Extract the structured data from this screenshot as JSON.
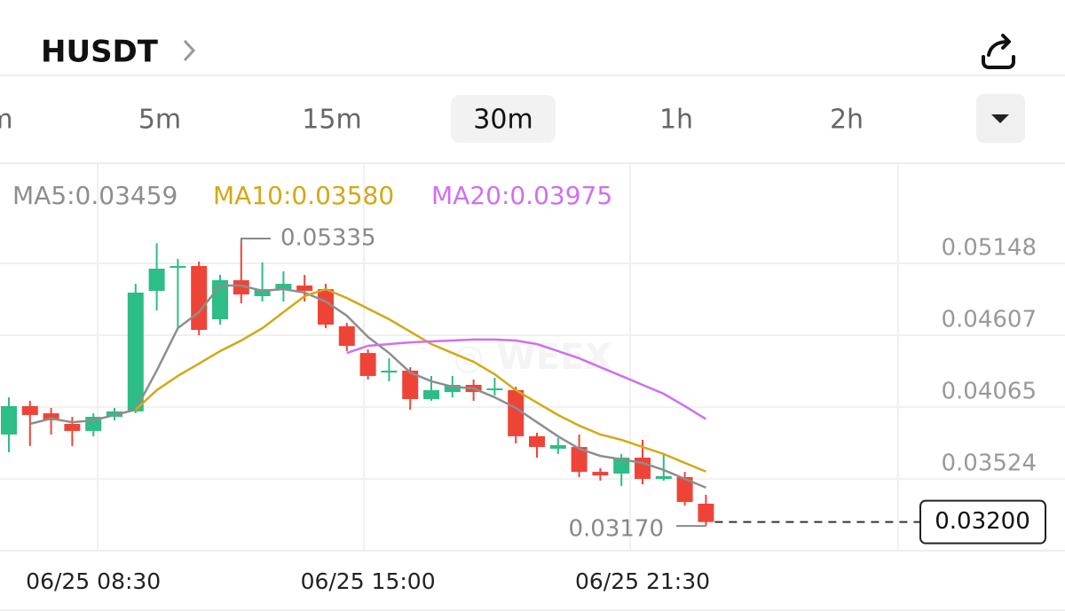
{
  "header": {
    "title": "HUSDT"
  },
  "tabs": {
    "items": [
      "m",
      "5m",
      "15m",
      "30m",
      "1h",
      "2h"
    ],
    "selected": 3
  },
  "chart_data": {
    "type": "candlestick",
    "categories": [
      null,
      null,
      null,
      null,
      "06/25 08:30",
      null,
      null,
      null,
      null,
      null,
      null,
      null,
      null,
      null,
      null,
      null,
      null,
      "06/25 15:00",
      null,
      null,
      null,
      null,
      null,
      null,
      null,
      null,
      null,
      null,
      null,
      null,
      "06/25 21:30",
      null,
      null,
      null
    ],
    "open": [
      0.03859,
      0.04073,
      0.04019,
      0.03939,
      0.03886,
      0.03992,
      0.04033,
      0.04941,
      0.05115,
      0.05128,
      0.04727,
      0.05021,
      0.04901,
      0.04954,
      0.04981,
      0.04954,
      0.04674,
      0.04473,
      0.04326,
      0.0434,
      0.04126,
      0.04179,
      0.04233,
      0.04193,
      0.04193,
      0.03846,
      0.03752,
      0.03765,
      0.03578,
      0.03565,
      0.03685,
      0.03525,
      0.03538,
      0.03338
    ],
    "high": [
      0.04139,
      0.04113,
      0.04059,
      0.03992,
      0.04019,
      0.04059,
      0.04994,
      0.053,
      0.05181,
      0.05161,
      0.05061,
      0.05335,
      0.05155,
      0.05088,
      0.05061,
      0.04994,
      0.047,
      0.045,
      0.04433,
      0.04366,
      0.043,
      0.043,
      0.04273,
      0.04286,
      0.04219,
      0.03872,
      0.03832,
      0.03859,
      0.03605,
      0.03712,
      0.03819,
      0.03712,
      0.03578,
      0.03405
    ],
    "low": [
      0.03725,
      0.03772,
      0.03859,
      0.03772,
      0.03846,
      0.03966,
      0.04019,
      0.04794,
      0.0466,
      0.04607,
      0.04687,
      0.04847,
      0.04861,
      0.04861,
      0.04861,
      0.0466,
      0.04487,
      0.04273,
      0.0426,
      0.04046,
      0.04113,
      0.04139,
      0.04113,
      0.04153,
      0.03792,
      0.03685,
      0.03712,
      0.03538,
      0.03511,
      0.03471,
      0.03485,
      0.03511,
      0.03324,
      0.0317
    ],
    "close": [
      0.04073,
      0.04006,
      0.03966,
      0.03886,
      0.03992,
      0.04033,
      0.04928,
      0.05108,
      0.05128,
      0.04647,
      0.05021,
      0.04914,
      0.04954,
      0.04994,
      0.04941,
      0.04687,
      0.04527,
      0.043,
      0.0434,
      0.04126,
      0.04193,
      0.04233,
      0.04179,
      0.04206,
      0.03846,
      0.03765,
      0.03779,
      0.03578,
      0.03551,
      0.03685,
      0.03525,
      0.03545,
      0.03351,
      0.032
    ],
    "up_color": "#2dbd86",
    "down_color": "#ee4438",
    "ylim": [
      0.02984,
      0.05896
    ],
    "yticks": [
      0.03524,
      0.04065,
      0.04607,
      0.05148
    ],
    "grid": true,
    "series": [
      {
        "name": "MA5:0.03459",
        "color": "#8e8e8e",
        "values": [
          null,
          0.03939,
          0.03979,
          0.03952,
          0.03966,
          0.04006,
          0.04046,
          0.0434,
          0.0466,
          0.04781,
          0.04981,
          0.04981,
          0.04941,
          0.04954,
          0.04928,
          0.04861,
          0.04754,
          0.04594,
          0.04473,
          0.04326,
          0.0426,
          0.04219,
          0.04206,
          0.04139,
          0.04059,
          0.03952,
          0.03845,
          0.03752,
          0.03698,
          0.03672,
          0.03645,
          0.03592,
          0.03525,
          0.03459
        ]
      },
      {
        "name": "MA10:0.03580",
        "color": "#d4a814",
        "values": [
          null,
          null,
          null,
          null,
          null,
          null,
          0.04046,
          0.04193,
          0.043,
          0.04393,
          0.04487,
          0.04567,
          0.0466,
          0.04781,
          0.04901,
          0.04954,
          0.04887,
          0.04807,
          0.04727,
          0.04634,
          0.0454,
          0.04473,
          0.04407,
          0.04313,
          0.04193,
          0.04099,
          0.04006,
          0.03926,
          0.03859,
          0.03819,
          0.03765,
          0.03712,
          0.03645,
          0.0358
        ]
      },
      {
        "name": "MA20:0.03975",
        "color": "#cf6ff0",
        "values": [
          null,
          null,
          null,
          null,
          null,
          null,
          null,
          null,
          null,
          null,
          null,
          null,
          null,
          null,
          null,
          null,
          0.04473,
          0.04527,
          0.0454,
          0.04553,
          0.0456,
          0.04567,
          0.04574,
          0.04574,
          0.04567,
          0.0454,
          0.04487,
          0.04433,
          0.04366,
          0.043,
          0.04233,
          0.04166,
          0.04073,
          0.03975
        ]
      }
    ],
    "annotations": [
      {
        "label": "0.05335",
        "value": 0.05335
      },
      {
        "label": "0.03170",
        "value": 0.0317
      }
    ],
    "last_price": {
      "value": 0.032,
      "label": "0.03200"
    }
  }
}
